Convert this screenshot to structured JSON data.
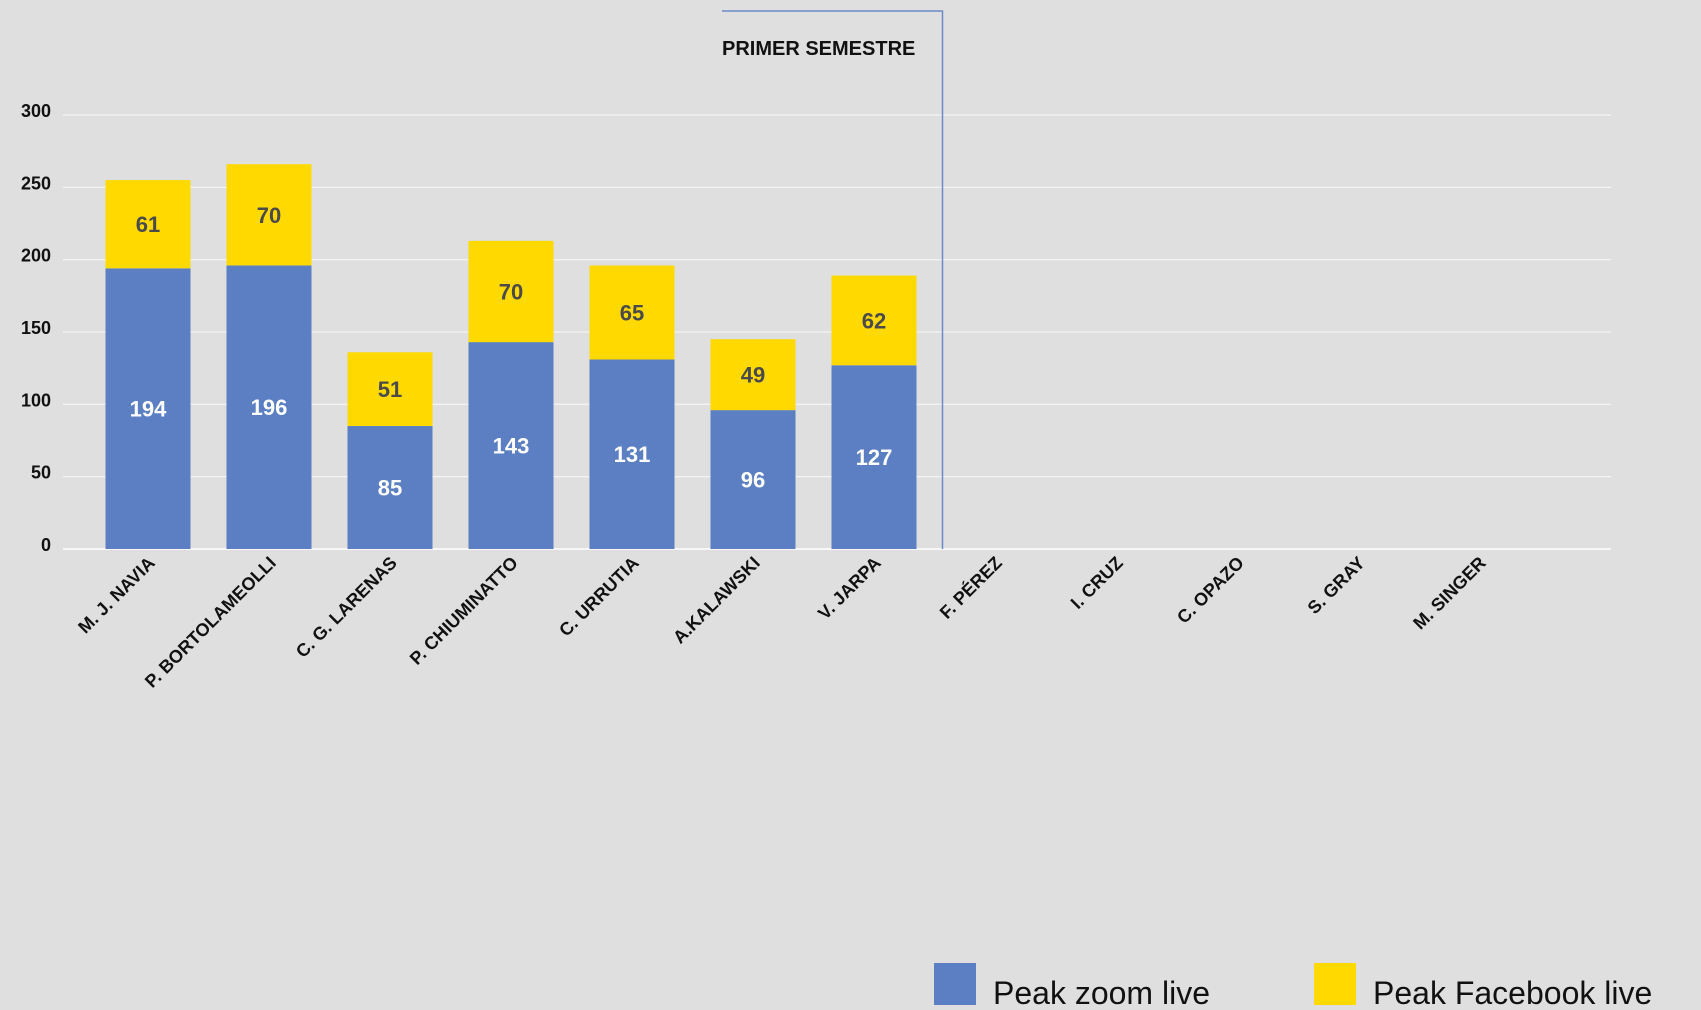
{
  "chart_data": {
    "type": "bar",
    "stacked": true,
    "categories": [
      "M. J. NAVIA",
      "P. BORTOLAMEOLLI",
      "C. G. LARENAS",
      "P. CHIUMINATTO",
      "C. URRUTIA",
      "A.KALAWSKI",
      "V. JARPA",
      "F. PÉREZ",
      "I. CRUZ",
      "C. OPAZO",
      "S. GRAY",
      "M. SINGER"
    ],
    "series": [
      {
        "name": "Peak zoom live",
        "color": "#5b7fc2",
        "label_color": "#ffffff",
        "values": [
          194,
          196,
          85,
          143,
          131,
          96,
          127,
          null,
          null,
          null,
          null,
          null
        ]
      },
      {
        "name": "Peak Facebook live",
        "color": "#ffd900",
        "label_color": "#4a4a4a",
        "values": [
          61,
          70,
          51,
          70,
          65,
          49,
          62,
          null,
          null,
          null,
          null,
          null
        ]
      }
    ],
    "yticks": [
      0,
      50,
      100,
      150,
      200,
      250,
      300
    ],
    "ylim": [
      0,
      300
    ],
    "grid": true,
    "annotation": {
      "text": "PRIMER SEMESTRE",
      "after_category_index": 6
    },
    "legend_position": "bottom-right",
    "title": "",
    "xlabel": "",
    "ylabel": ""
  }
}
